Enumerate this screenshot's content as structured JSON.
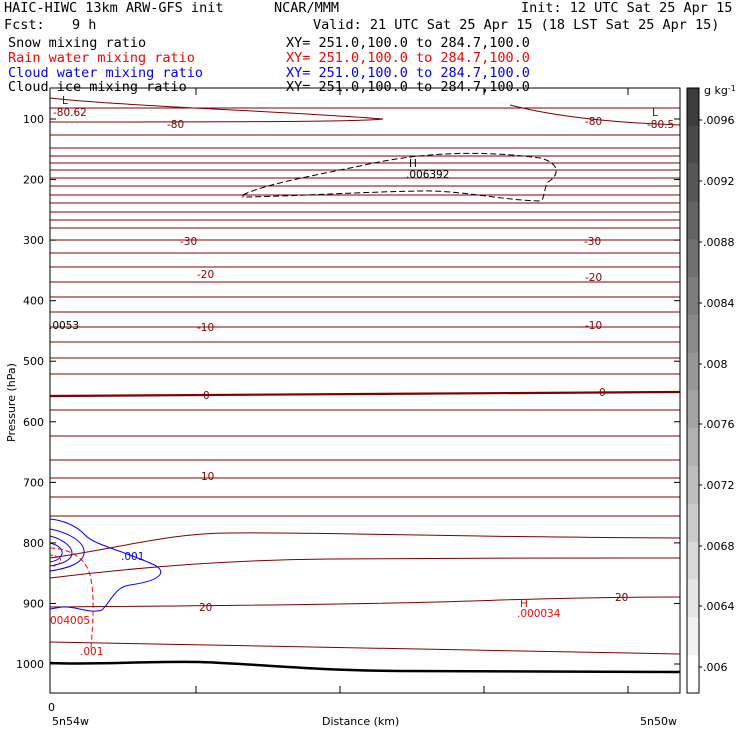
{
  "header": {
    "model": "HAIC-HIWC 13km ARW-GFS init",
    "org": "NCAR/MMM",
    "init": "Init: 12 UTC Sat 25 Apr 15",
    "fcst_label": "Fcst:",
    "fcst_value": "9 h",
    "valid": "Valid: 21 UTC Sat 25 Apr 15 (18 LST Sat 25 Apr 15)"
  },
  "fields": [
    {
      "name": "Snow mixing ratio",
      "xy": "XY= 251.0,100.0 to 284.7,100.0",
      "color": "#000000"
    },
    {
      "name": "Rain water mixing ratio",
      "xy": "XY= 251.0,100.0 to 284.7,100.0",
      "color": "#ff0000"
    },
    {
      "name": "Cloud water mixing ratio",
      "xy": "XY= 251.0,100.0 to 284.7,100.0",
      "color": "#0000ff"
    },
    {
      "name": "Cloud ice mixing ratio",
      "xy": "XY= 251.0,100.0 to 284.7,100.0",
      "color": "#000000"
    }
  ],
  "chart_data": {
    "type": "contour",
    "xlabel": "Distance (km)",
    "ylabel": "Pressure (hPa)",
    "x_tick_zero": "0",
    "x_start_label": "5n54w",
    "x_end_label": "5n50w",
    "y_ticks": [
      100,
      200,
      300,
      400,
      500,
      600,
      700,
      800,
      900,
      1000
    ],
    "ylim": [
      1050,
      50
    ],
    "colorbar": {
      "unit": "g kg",
      "unit_exp": "-1",
      "labels": [
        ".0096",
        ".0092",
        ".0088",
        ".0084",
        ".008",
        ".0076",
        ".0072",
        ".0068",
        ".0064",
        ".006"
      ]
    },
    "temperature_labels": [
      {
        "text": "-80",
        "color": "#800000"
      },
      {
        "text": "-80",
        "color": "#800000"
      },
      {
        "text": "-80.62",
        "color": "#800000"
      },
      {
        "text": "-80.5",
        "color": "#800000"
      },
      {
        "text": "L",
        "color": "#800000"
      },
      {
        "text": "L",
        "color": "#800000"
      },
      {
        "text": "-30",
        "color": "#800000"
      },
      {
        "text": "-30",
        "color": "#800000"
      },
      {
        "text": "-20",
        "color": "#800000"
      },
      {
        "text": "-20",
        "color": "#800000"
      },
      {
        "text": "-10",
        "color": "#800000"
      },
      {
        "text": "-10",
        "color": "#800000"
      },
      {
        "text": "0",
        "color": "#800000"
      },
      {
        "text": "0",
        "color": "#800000"
      },
      {
        "text": "10",
        "color": "#800000"
      },
      {
        "text": "20",
        "color": "#800000"
      },
      {
        "text": "20",
        "color": "#800000"
      }
    ],
    "ice_max": {
      "label": "H",
      "value": ".006392"
    },
    "snow_value": ".0053",
    "cloud_water_label": ".001",
    "rain_labels": [
      ".001",
      "004005"
    ],
    "rain_max": {
      "label": "H",
      "value": ".000034"
    }
  }
}
